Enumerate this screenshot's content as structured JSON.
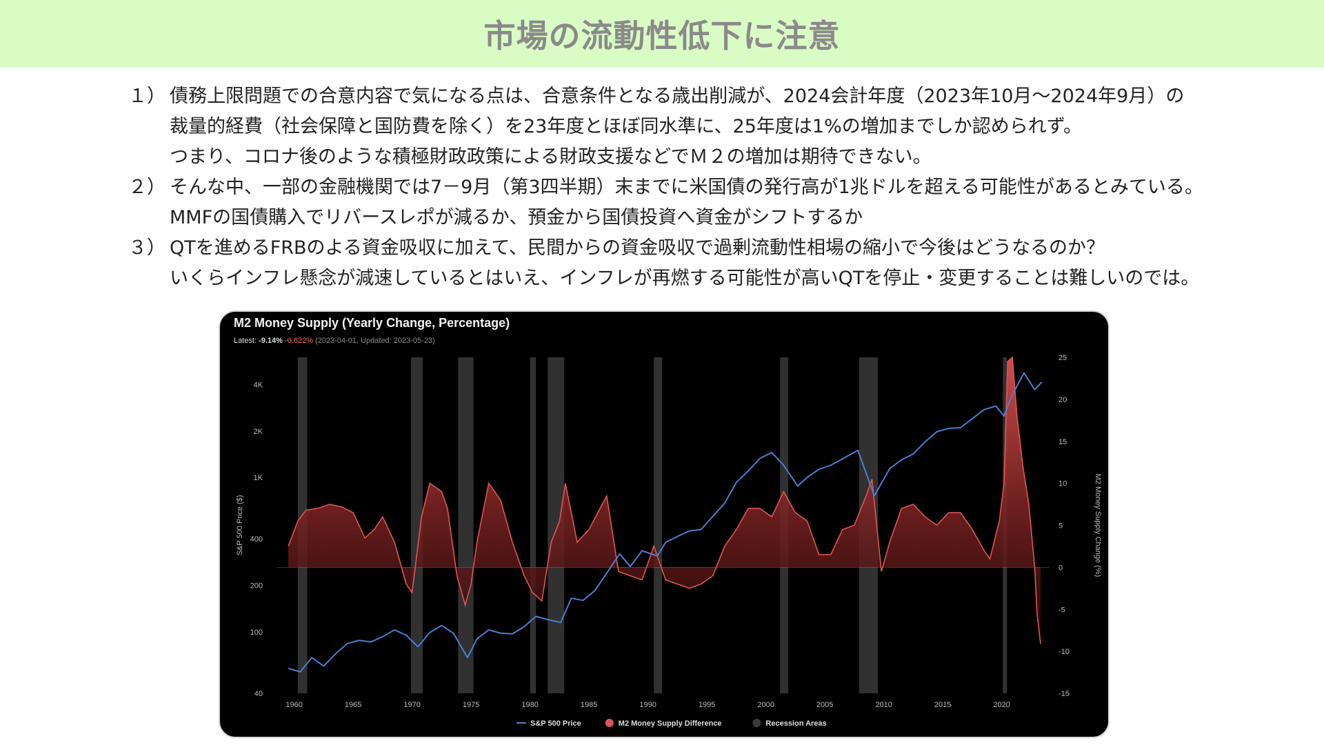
{
  "header": {
    "title": "市場の流動性低下に注意"
  },
  "items": [
    {
      "num": "１）",
      "lines": [
        "債務上限問題での合意内容で気になる点は、合意条件となる歳出削減が、2024会計年度（2023年10月～2024年9月）の",
        "裁量的経費（社会保障と国防費を除く）を23年度とほぼ同水準に、25年度は1%の増加までしか認められず。",
        "つまり、コロナ後のような積極財政政策による財政支援などでＭ２の増加は期待できない。"
      ]
    },
    {
      "num": "２）",
      "lines": [
        "そんな中、一部の金融機関では7－9月（第3四半期）末までに米国債の発行高が1兆ドルを超える可能性があるとみている。",
        "MMFの国債購入でリバースレポが減るか、預金から国債投資へ資金がシフトするか"
      ]
    },
    {
      "num": "３）",
      "lines": [
        "QTを進めるFRBのよる資金吸収に加えて、民間からの資金吸収で過剰流動性相場の縮小で今後はどうなるのか？",
        "いくらインフレ懸念が減速しているとはいえ、インフレが再燃する可能性が高いQTを停止・変更することは難しいのでは。"
      ]
    }
  ],
  "chart_data": {
    "type": "line",
    "title": "M2 Money Supply (Yearly Change, Percentage)",
    "subtitle": {
      "prefix": "Latest: ",
      "latest_value": "-9.14%",
      "latest_change": "-0.622%",
      "meta": "(2023-04-01, Updated: 2023-05-23)"
    },
    "xlabel": "",
    "ylabel_left": "S&P 500 Price ($)",
    "ylabel_right": "M2 Money Supply Change (%)",
    "x_ticks": [
      "1960",
      "1965",
      "1970",
      "1975",
      "1980",
      "1985",
      "1990",
      "1995",
      "2000",
      "2005",
      "2010",
      "2015",
      "2020"
    ],
    "y_left_ticks": [
      "40",
      "100",
      "200",
      "400",
      "1K",
      "2K",
      "4K"
    ],
    "y_left_tick_values": [
      40,
      100,
      200,
      400,
      1000,
      2000,
      4000
    ],
    "y_left_scale": "log",
    "y_left_range": [
      40,
      6000
    ],
    "y_right_ticks": [
      "25",
      "20",
      "15",
      "10",
      "5",
      "0",
      "-5",
      "-10",
      "-15"
    ],
    "y_right_range": [
      -15,
      25
    ],
    "x_range": [
      1958.5,
      2024
    ],
    "legend": [
      {
        "label": "S&P 500 Price",
        "color": "#4a7fd4"
      },
      {
        "label": "M2 Money Supply Difference",
        "color": "#e05555"
      },
      {
        "label": "Recession Areas",
        "color": "#3a3a3a"
      }
    ],
    "legend_placement": "bottom",
    "grid": false,
    "recessions": [
      [
        1960.3,
        1961.1
      ],
      [
        1969.9,
        1970.9
      ],
      [
        1973.9,
        1975.2
      ],
      [
        1980.0,
        1980.5
      ],
      [
        1981.5,
        1982.9
      ],
      [
        1990.5,
        1991.2
      ],
      [
        2001.2,
        2001.9
      ],
      [
        2007.9,
        2009.5
      ],
      [
        2020.1,
        2020.3
      ]
    ],
    "sp500": {
      "name": "S&P 500 Price",
      "x": [
        1959.5,
        1960.5,
        1961.5,
        1962.5,
        1963.5,
        1964.5,
        1965.5,
        1966.5,
        1967.5,
        1968.5,
        1969.5,
        1970.5,
        1971.5,
        1972.5,
        1973.5,
        1974.7,
        1975.5,
        1976.5,
        1977.5,
        1978.5,
        1979.5,
        1980.5,
        1981.5,
        1982.6,
        1983.5,
        1984.5,
        1985.5,
        1986.5,
        1987.6,
        1988.5,
        1989.5,
        1990.8,
        1991.5,
        1992.5,
        1993.5,
        1994.5,
        1995.5,
        1996.5,
        1997.5,
        1998.5,
        1999.5,
        2000.5,
        2001.5,
        2002.7,
        2003.5,
        2004.5,
        2005.5,
        2006.5,
        2007.8,
        2009.2,
        2010.5,
        2011.5,
        2012.5,
        2013.5,
        2014.5,
        2015.5,
        2016.5,
        2017.5,
        2018.5,
        2019.5,
        2020.2,
        2020.8,
        2021.5,
        2021.9,
        2022.8,
        2023.4
      ],
      "values": [
        58,
        55,
        68,
        60,
        72,
        84,
        88,
        86,
        93,
        103,
        95,
        80,
        99,
        110,
        98,
        68,
        90,
        103,
        98,
        97,
        108,
        126,
        120,
        115,
        165,
        160,
        185,
        240,
        320,
        265,
        335,
        310,
        380,
        415,
        450,
        460,
        560,
        680,
        930,
        1100,
        1330,
        1450,
        1200,
        880,
        1000,
        1130,
        1200,
        1320,
        1500,
        760,
        1140,
        1300,
        1420,
        1700,
        1980,
        2080,
        2100,
        2400,
        2750,
        2900,
        2500,
        3300,
        4200,
        4750,
        3700,
        4150
      ]
    },
    "m2": {
      "name": "M2 Money Supply Difference",
      "x": [
        1959.5,
        1960.3,
        1961.0,
        1962.0,
        1963.0,
        1964.0,
        1965.0,
        1966.0,
        1966.8,
        1967.5,
        1968.5,
        1969.5,
        1970.0,
        1970.8,
        1971.5,
        1972.5,
        1973.0,
        1973.8,
        1974.5,
        1975.0,
        1975.5,
        1976.5,
        1977.5,
        1978.5,
        1979.5,
        1980.2,
        1981.0,
        1981.8,
        1982.5,
        1983.0,
        1984.0,
        1985.0,
        1986.5,
        1987.5,
        1988.5,
        1989.5,
        1990.5,
        1991.5,
        1992.5,
        1993.5,
        1994.5,
        1995.5,
        1996.5,
        1997.5,
        1998.5,
        1999.5,
        2000.5,
        2001.5,
        2002.5,
        2003.5,
        2004.5,
        2005.5,
        2006.5,
        2007.5,
        2008.5,
        2009.0,
        2009.8,
        2010.5,
        2011.5,
        2012.5,
        2013.5,
        2014.5,
        2015.5,
        2016.5,
        2017.5,
        2018.5,
        2019.0,
        2019.8,
        2020.2,
        2020.5,
        2020.9,
        2021.3,
        2021.8,
        2022.3,
        2022.8,
        2023.0,
        2023.3
      ],
      "values": [
        2.5,
        5.5,
        6.8,
        7.0,
        7.5,
        7.2,
        6.5,
        3.5,
        4.5,
        6.0,
        3.0,
        -2.0,
        -3.0,
        6.0,
        10.0,
        9.0,
        7.0,
        -1.0,
        -4.5,
        -2.0,
        3.0,
        10.0,
        8.0,
        3.0,
        -1.0,
        -3.0,
        -4.0,
        3.0,
        5.5,
        10.0,
        3.0,
        4.5,
        8.5,
        -0.5,
        -1.0,
        -1.5,
        2.5,
        -1.5,
        -2.0,
        -2.5,
        -2.0,
        -1.0,
        2.5,
        4.5,
        7.0,
        7.0,
        6.0,
        9.0,
        6.5,
        5.5,
        1.5,
        1.5,
        4.5,
        5.0,
        8.5,
        10.5,
        -0.5,
        3.0,
        7.0,
        7.5,
        6.0,
        5.0,
        6.5,
        6.5,
        4.5,
        2.0,
        1.0,
        5.5,
        10.0,
        24.5,
        25.0,
        18.0,
        12.0,
        7.5,
        0.0,
        -5.5,
        -9.14
      ]
    }
  }
}
